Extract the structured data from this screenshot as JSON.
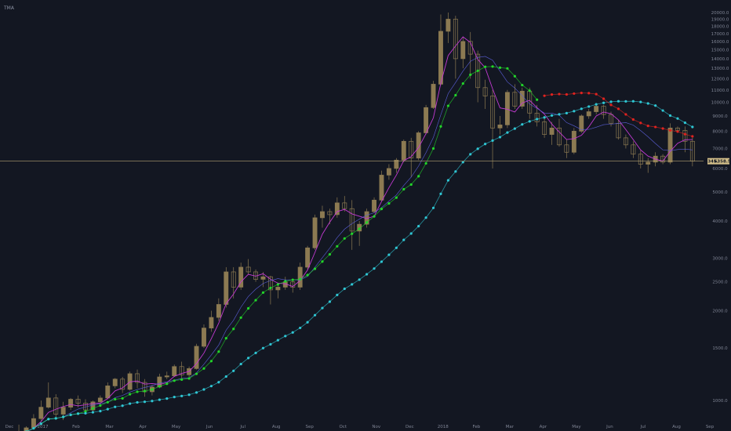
{
  "chart_data": {
    "type": "candlestick",
    "title": "TMA",
    "y_scale": "log",
    "ylim": [
      850,
      21500
    ],
    "y_ticks": [
      1000,
      1500,
      2000,
      2500,
      3000,
      4000,
      5000,
      6000,
      7000,
      8000,
      9000,
      10000,
      11000,
      12000,
      13000,
      14000,
      15000,
      16000,
      17000,
      18000,
      19000,
      20000
    ],
    "y_tick_labels": [
      "1000.0",
      "1500.0",
      "2000.0",
      "2500.0",
      "3000.0",
      "4000.0",
      "5000.0",
      "6000.0",
      "7000.0",
      "8000.0",
      "9000.0",
      "10000.0",
      "11000.0",
      "12000.0",
      "13000.0",
      "14000.0",
      "15000.0",
      "16000.0",
      "17000.0",
      "18000.0",
      "19000.0",
      "20000.0"
    ],
    "x_labels": [
      "Dec",
      "2017",
      "Feb",
      "Mar",
      "Apr",
      "May",
      "Jun",
      "Jul",
      "Aug",
      "Sep",
      "Oct",
      "Nov",
      "Dec",
      "2018",
      "Feb",
      "Mar",
      "Apr",
      "May",
      "Jun",
      "Jul",
      "Aug",
      "Sep"
    ],
    "current_price": 6345.7,
    "price_tags": [
      "6345.7",
      "6358.52"
    ],
    "candles": [
      [
        740,
        790,
        730,
        780
      ],
      [
        780,
        830,
        760,
        770
      ],
      [
        770,
        820,
        760,
        810
      ],
      [
        810,
        900,
        800,
        870
      ],
      [
        870,
        1000,
        850,
        950
      ],
      [
        950,
        1150,
        940,
        1020
      ],
      [
        1020,
        1050,
        880,
        900
      ],
      [
        900,
        990,
        860,
        950
      ],
      [
        950,
        1020,
        930,
        1010
      ],
      [
        1010,
        1040,
        950,
        980
      ],
      [
        980,
        1010,
        900,
        930
      ],
      [
        930,
        1000,
        920,
        990
      ],
      [
        990,
        1040,
        970,
        1020
      ],
      [
        1020,
        1150,
        1010,
        1120
      ],
      [
        1120,
        1190,
        1100,
        1180
      ],
      [
        1180,
        1200,
        1060,
        1090
      ],
      [
        1090,
        1250,
        1080,
        1230
      ],
      [
        1230,
        1270,
        1100,
        1150
      ],
      [
        1150,
        1180,
        1030,
        1070
      ],
      [
        1070,
        1130,
        1040,
        1110
      ],
      [
        1110,
        1230,
        1100,
        1200
      ],
      [
        1200,
        1250,
        1180,
        1210
      ],
      [
        1210,
        1320,
        1200,
        1300
      ],
      [
        1300,
        1350,
        1190,
        1220
      ],
      [
        1220,
        1300,
        1200,
        1280
      ],
      [
        1280,
        1550,
        1270,
        1520
      ],
      [
        1520,
        1800,
        1500,
        1750
      ],
      [
        1750,
        2000,
        1700,
        1900
      ],
      [
        1900,
        2200,
        1850,
        2100
      ],
      [
        2100,
        2800,
        2050,
        2700
      ],
      [
        2700,
        2800,
        2200,
        2400
      ],
      [
        2400,
        2900,
        2350,
        2800
      ],
      [
        2800,
        2980,
        2650,
        2700
      ],
      [
        2700,
        2750,
        2500,
        2550
      ],
      [
        2550,
        2700,
        2400,
        2600
      ],
      [
        2600,
        2620,
        2100,
        2350
      ],
      [
        2350,
        2450,
        2200,
        2400
      ],
      [
        2400,
        2600,
        2350,
        2500
      ],
      [
        2500,
        2550,
        2300,
        2400
      ],
      [
        2400,
        2900,
        2350,
        2800
      ],
      [
        2800,
        3300,
        2750,
        3250
      ],
      [
        3250,
        4200,
        3200,
        4100
      ],
      [
        4100,
        4500,
        3800,
        4300
      ],
      [
        4300,
        4400,
        3900,
        4200
      ],
      [
        4200,
        4800,
        4100,
        4600
      ],
      [
        4600,
        4850,
        4300,
        4400
      ],
      [
        4400,
        4700,
        3200,
        3700
      ],
      [
        3700,
        4000,
        3300,
        3900
      ],
      [
        3900,
        4400,
        3800,
        4300
      ],
      [
        4300,
        4800,
        4250,
        4700
      ],
      [
        4700,
        5900,
        4650,
        5700
      ],
      [
        5700,
        6200,
        5500,
        6000
      ],
      [
        6000,
        6500,
        5800,
        6400
      ],
      [
        6400,
        7500,
        6300,
        7400
      ],
      [
        7400,
        7600,
        5600,
        6500
      ],
      [
        6500,
        8000,
        6400,
        7900
      ],
      [
        7900,
        9800,
        7800,
        9600
      ],
      [
        9600,
        11800,
        9500,
        11500
      ],
      [
        11500,
        19700,
        11400,
        17300
      ],
      [
        17300,
        20000,
        15800,
        19000
      ],
      [
        19000,
        19500,
        12000,
        14000
      ],
      [
        14000,
        16500,
        13000,
        16000
      ],
      [
        16000,
        17200,
        12000,
        14500
      ],
      [
        14500,
        14900,
        10000,
        11200
      ],
      [
        11200,
        11900,
        9500,
        10500
      ],
      [
        10500,
        11000,
        6000,
        8200
      ],
      [
        8200,
        9000,
        7800,
        8400
      ],
      [
        8400,
        11000,
        8200,
        10800
      ],
      [
        10800,
        11500,
        9500,
        9700
      ],
      [
        9700,
        11200,
        9500,
        10900
      ],
      [
        10900,
        11200,
        8800,
        9200
      ],
      [
        9200,
        9800,
        8300,
        8600
      ],
      [
        8600,
        9000,
        7600,
        7800
      ],
      [
        7800,
        8600,
        7200,
        8200
      ],
      [
        8200,
        8800,
        7100,
        7200
      ],
      [
        7200,
        7500,
        6500,
        6800
      ],
      [
        6800,
        8200,
        6700,
        8000
      ],
      [
        8000,
        9100,
        7900,
        9000
      ],
      [
        9000,
        9500,
        8800,
        9300
      ],
      [
        9300,
        9900,
        9100,
        9700
      ],
      [
        9700,
        9800,
        8800,
        9100
      ],
      [
        9100,
        9300,
        8300,
        8500
      ],
      [
        8500,
        8700,
        7500,
        7600
      ],
      [
        7600,
        7800,
        7000,
        7200
      ],
      [
        7200,
        7400,
        6500,
        6700
      ],
      [
        6700,
        6900,
        6000,
        6200
      ],
      [
        6200,
        6500,
        5800,
        6300
      ],
      [
        6300,
        6800,
        6100,
        6600
      ],
      [
        6600,
        6700,
        6200,
        6300
      ],
      [
        6300,
        8500,
        6200,
        8200
      ],
      [
        8200,
        8300,
        7900,
        8050
      ],
      [
        8050,
        8300,
        6800,
        7400
      ],
      [
        7400,
        7600,
        6100,
        6350
      ]
    ],
    "series": [
      {
        "color": "#c23ad1"
      },
      {
        "color": "#5b5fd9"
      },
      {
        "color": "#22d52a"
      },
      {
        "color": "#2fc7d4"
      },
      {
        "color": "#e0231f"
      }
    ],
    "colors": {
      "background": "#131722",
      "candle": "#8c7a52",
      "price_line": "#b3a372",
      "price_tag": "#d4c08a",
      "axis_text": "#7f8494"
    }
  }
}
